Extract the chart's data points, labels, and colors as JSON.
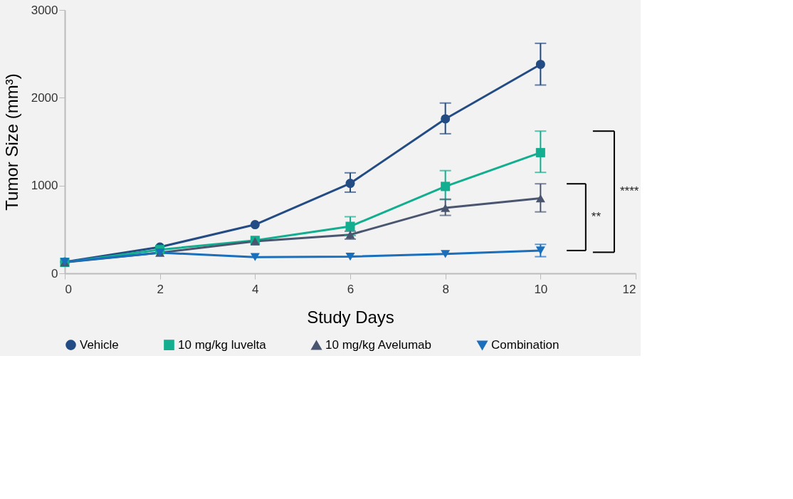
{
  "chart_data": {
    "type": "line",
    "xlabel": "Study Days",
    "ylabel": "Tumor Size (mm³)",
    "x": [
      0,
      2,
      4,
      6,
      8,
      10
    ],
    "xlim": [
      0,
      12
    ],
    "xticks": [
      0,
      2,
      4,
      6,
      8,
      10,
      12
    ],
    "ylim": [
      0,
      3000
    ],
    "yticks": [
      0,
      1000,
      2000,
      3000
    ],
    "grid": false,
    "legend": "bottom",
    "line_style": "solid",
    "series": [
      {
        "name": "Vehicle",
        "color": "#234b84",
        "marker": "circle",
        "values": [
          130,
          300,
          555,
          1025,
          1760,
          2380
        ],
        "errors": [
          null,
          null,
          null,
          [
            925,
            1145
          ],
          [
            1590,
            1940
          ],
          [
            2145,
            2620
          ]
        ]
      },
      {
        "name": "10 mg/kg luvelta",
        "color": "#12ae8f",
        "marker": "square",
        "values": [
          125,
          270,
          375,
          535,
          990,
          1375
        ],
        "errors": [
          null,
          null,
          null,
          [
            430,
            645
          ],
          [
            840,
            1170
          ],
          [
            1150,
            1620
          ]
        ]
      },
      {
        "name": "10 mg/kg Avelumab",
        "color": "#4a5670",
        "marker": "triangle",
        "values": [
          125,
          235,
          365,
          440,
          745,
          855
        ],
        "errors": [
          null,
          null,
          null,
          [
            390,
            480
          ],
          [
            660,
            845
          ],
          [
            700,
            1020
          ]
        ]
      },
      {
        "name": "Combination",
        "color": "#1a6fbd",
        "marker": "triangle-down",
        "values": [
          130,
          235,
          185,
          190,
          220,
          260
        ],
        "errors": [
          null,
          null,
          null,
          null,
          null,
          [
            190,
            330
          ]
        ]
      }
    ],
    "annotations": [
      "**",
      "****"
    ]
  }
}
